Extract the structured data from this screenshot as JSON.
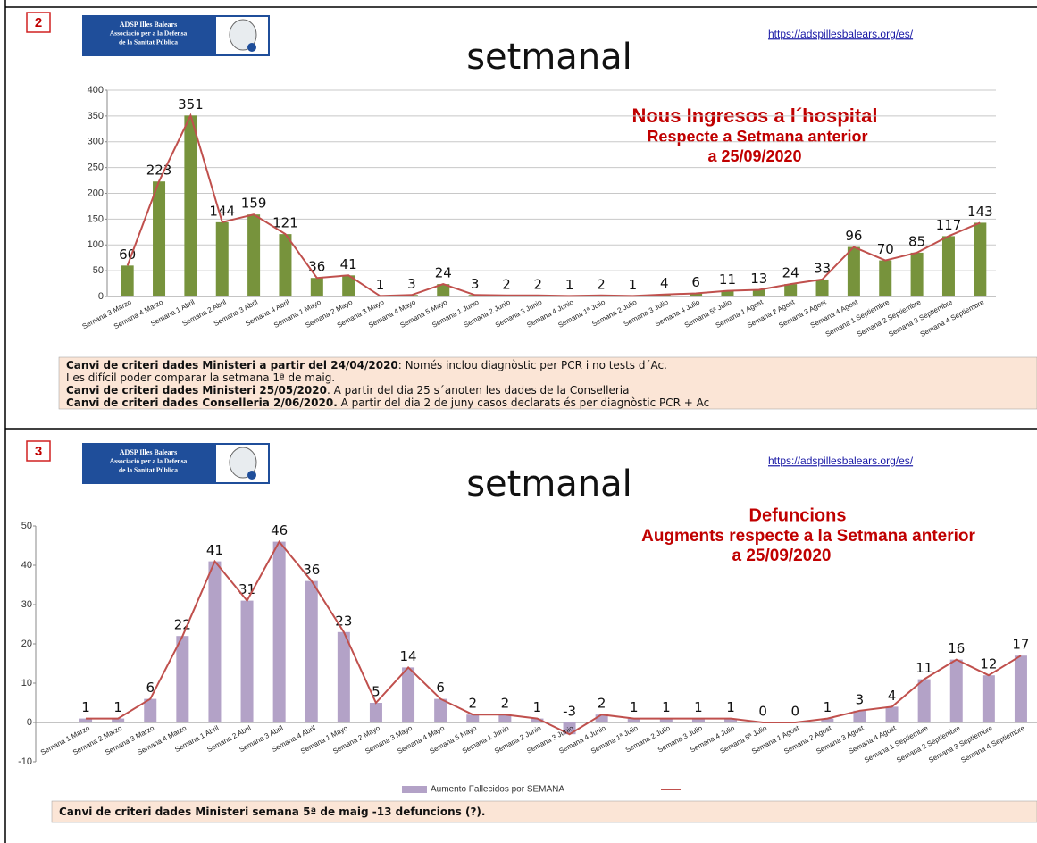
{
  "chart_data": [
    {
      "type": "bar",
      "panel": "2",
      "logo": [
        "ADSP Illes Balears",
        "Associació per a la Defensa",
        "de la Sanitat Pública"
      ],
      "url": "https://adspillesbalears.org/es/",
      "heading": "setmanal",
      "title": "Nous Ingresos a l´hospital",
      "subtitle": [
        "Respecte a  Setmana anterior",
        "a 25/09/2020"
      ],
      "categories": [
        "Semana 3 Marzo",
        "Semana 4 Marzo",
        "Semana 1 Abril",
        "Semana 2 Abril",
        "Semana 3 Abril",
        "Semana 4 Abril",
        "Semana 1 Mayo",
        "Semana 2 Mayo",
        "Semana 3 Mayo",
        "Semana 4 Mayo",
        "Semana 5 Mayo",
        "Semana 1 Junio",
        "Semana 2 Junio",
        "Semana 3 Junio",
        "Semana 4 Junio",
        "Semana 1ª Julio",
        "Semana 2 Julio",
        "Semana 3 Julio",
        "Semana 4 Julio",
        "Semana 5ª Julio",
        "Semana 1 Agost",
        "Semana 2 Agost",
        "Semana 3 Agost",
        "Semana 4 Agost",
        "Semana 1 Septiembre",
        "Semana 2 Septiembre",
        "Semana 3 Septiembre",
        "Semana 4 Septiembre"
      ],
      "series": [
        {
          "type": "bar",
          "color": "#77933c",
          "values": [
            60,
            223,
            351,
            144,
            159,
            121,
            36,
            41,
            1,
            3,
            24,
            3,
            2,
            2,
            1,
            2,
            1,
            4,
            6,
            11,
            13,
            24,
            33,
            96,
            70,
            85,
            117,
            143
          ]
        },
        {
          "type": "line",
          "color": "#c0504d",
          "values": [
            60,
            223,
            351,
            144,
            159,
            121,
            36,
            41,
            1,
            3,
            24,
            3,
            2,
            2,
            1,
            2,
            1,
            4,
            6,
            11,
            13,
            24,
            33,
            96,
            70,
            85,
            117,
            143
          ]
        }
      ],
      "ylim": [
        0,
        400
      ],
      "yticks": [
        0,
        50,
        100,
        150,
        200,
        250,
        300,
        350,
        400
      ],
      "grid": true,
      "notes": [
        {
          "strong": "Canvi de criteri dades Ministeri a partir del 24/04/2020",
          "text": ": Només inclou diagnòstic per PCR i no tests d´Ac."
        },
        {
          "text": "I es difícil poder comparar la setmana 1ª de maig."
        },
        {
          "strong": "Canvi de criteri dades Ministeri 25/05/2020",
          "text": ". A partir del  dia 25 s´anoten les dades de la Conselleria"
        },
        {
          "strong": "Canvi de criteri dades Conselleria 2/06/2020.",
          "text": " A partir del dia 2 de juny  casos declarats és per diagnòstic PCR + Ac"
        }
      ]
    },
    {
      "type": "bar",
      "panel": "3",
      "logo": [
        "ADSP Illes Balears",
        "Associació per a la Defensa",
        "de la Sanitat Pública"
      ],
      "url": "https://adspillesbalears.org/es/",
      "heading": "setmanal",
      "title": "Defuncions",
      "subtitle": [
        "Augments respecte a la Setmana anterior",
        "a 25/09/2020"
      ],
      "categories": [
        "Semana 1 Marzo",
        "Semana 2 Marzo",
        "Semana 3 Marzo",
        "Semana 4 Marzo",
        "Semana 1 Abril",
        "Semana 2 Abril",
        "Semana 3 Abril",
        "Semana 4 Abril",
        "Semana 1 Mayo",
        "Semana 2 Mayo",
        "Semana 3 Mayo",
        "Semana 4 Mayo",
        "Semana 5 Mayo",
        "Semana 1 Junio",
        "Semana 2 Junio",
        "Semana 3 Junio",
        "Semana 4 Junio",
        "Semana 1ª Julio",
        "Semana 2 Julio",
        "Semana 3 Julio",
        "Semana 4 Julio",
        "Semana 5ª Julio",
        "Semana 1 Agost",
        "Semana 2 Agost",
        "Semana 3 Agost",
        "Semana 4 Agost",
        "Semana 1 Septiembre",
        "Semana 2 Septiembre",
        "Semana 3 Septiembre",
        "Semana 4 Septiembre"
      ],
      "series": [
        {
          "type": "bar",
          "name": "Aumento Fallecidos por SEMANA",
          "color": "#b3a2c7",
          "values": [
            1,
            1,
            6,
            22,
            41,
            31,
            46,
            36,
            23,
            5,
            14,
            6,
            2,
            2,
            1,
            -3,
            2,
            1,
            1,
            1,
            1,
            0,
            0,
            1,
            3,
            4,
            11,
            16,
            12,
            17
          ]
        },
        {
          "type": "line",
          "color": "#c0504d",
          "values": [
            1,
            1,
            6,
            22,
            41,
            31,
            46,
            36,
            23,
            5,
            14,
            6,
            2,
            2,
            1,
            -3,
            2,
            1,
            1,
            1,
            1,
            0,
            0,
            1,
            3,
            4,
            11,
            16,
            12,
            17
          ]
        }
      ],
      "ylim": [
        -10,
        50
      ],
      "yticks": [
        -10,
        0,
        10,
        20,
        30,
        40,
        50
      ],
      "grid": false,
      "legend": "bottom",
      "notes": [
        {
          "strong": "Canvi de criteri dades Ministeri semana 5ª de maig  -13 defuncions (?)."
        }
      ]
    }
  ]
}
